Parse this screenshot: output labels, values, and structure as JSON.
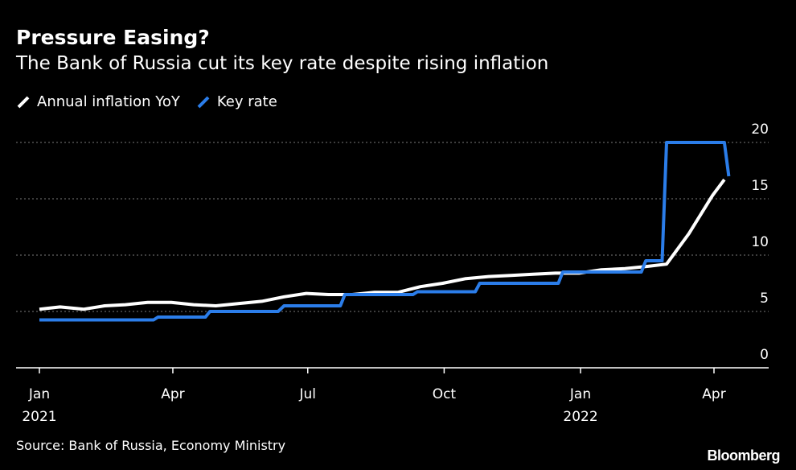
{
  "header": {
    "title": "Pressure Easing?",
    "subtitle": "The Bank of Russia cut its key rate despite rising inflation"
  },
  "footer": {
    "source": "Source: Bank of Russia, Economy Ministry",
    "brand": "Bloomberg"
  },
  "chart_data": {
    "type": "line",
    "title": "Pressure Easing?",
    "subtitle": "The Bank of Russia cut its key rate despite rising inflation",
    "xlabel": "",
    "ylabel": "",
    "x_range": [
      "2021-01-01",
      "2022-04-30"
    ],
    "ylim": [
      0,
      20
    ],
    "yticks": [
      0,
      5,
      10,
      15,
      20
    ],
    "y_axis_side": "right",
    "grid": "horizontal dotted",
    "legend_position": "top-left",
    "x_ticks": [
      {
        "date": "2021-01-01",
        "label": "Jan",
        "sublabel": "2021"
      },
      {
        "date": "2021-04-01",
        "label": "Apr",
        "sublabel": ""
      },
      {
        "date": "2021-07-01",
        "label": "Jul",
        "sublabel": ""
      },
      {
        "date": "2021-10-01",
        "label": "Oct",
        "sublabel": ""
      },
      {
        "date": "2022-01-01",
        "label": "Jan",
        "sublabel": "2022"
      },
      {
        "date": "2022-04-01",
        "label": "Apr",
        "sublabel": ""
      }
    ],
    "series": [
      {
        "name": "Annual inflation YoY",
        "color": "#ffffff",
        "points": [
          [
            "2021-01-01",
            5.2
          ],
          [
            "2021-01-15",
            5.4
          ],
          [
            "2021-01-31",
            5.2
          ],
          [
            "2021-02-14",
            5.5
          ],
          [
            "2021-02-28",
            5.6
          ],
          [
            "2021-03-15",
            5.8
          ],
          [
            "2021-03-31",
            5.8
          ],
          [
            "2021-04-15",
            5.6
          ],
          [
            "2021-04-30",
            5.5
          ],
          [
            "2021-05-15",
            5.7
          ],
          [
            "2021-05-31",
            5.9
          ],
          [
            "2021-06-15",
            6.3
          ],
          [
            "2021-06-30",
            6.6
          ],
          [
            "2021-07-15",
            6.5
          ],
          [
            "2021-07-31",
            6.5
          ],
          [
            "2021-08-15",
            6.7
          ],
          [
            "2021-08-31",
            6.7
          ],
          [
            "2021-09-15",
            7.2
          ],
          [
            "2021-09-30",
            7.5
          ],
          [
            "2021-10-15",
            7.9
          ],
          [
            "2021-10-31",
            8.1
          ],
          [
            "2021-11-15",
            8.2
          ],
          [
            "2021-11-30",
            8.3
          ],
          [
            "2021-12-15",
            8.4
          ],
          [
            "2021-12-31",
            8.4
          ],
          [
            "2022-01-15",
            8.7
          ],
          [
            "2022-01-31",
            8.8
          ],
          [
            "2022-02-15",
            9.0
          ],
          [
            "2022-02-28",
            9.2
          ],
          [
            "2022-03-15",
            11.9
          ],
          [
            "2022-03-31",
            15.3
          ],
          [
            "2022-04-08",
            16.7
          ]
        ]
      },
      {
        "name": "Key rate",
        "color": "#2b7de9",
        "points": [
          [
            "2021-01-01",
            4.25
          ],
          [
            "2021-03-19",
            4.25
          ],
          [
            "2021-03-22",
            4.5
          ],
          [
            "2021-04-23",
            4.5
          ],
          [
            "2021-04-26",
            5.0
          ],
          [
            "2021-06-11",
            5.0
          ],
          [
            "2021-06-15",
            5.5
          ],
          [
            "2021-07-23",
            5.5
          ],
          [
            "2021-07-26",
            6.5
          ],
          [
            "2021-09-10",
            6.5
          ],
          [
            "2021-09-13",
            6.75
          ],
          [
            "2021-10-22",
            6.75
          ],
          [
            "2021-10-25",
            7.5
          ],
          [
            "2021-12-17",
            7.5
          ],
          [
            "2021-12-20",
            8.5
          ],
          [
            "2022-02-11",
            8.5
          ],
          [
            "2022-02-14",
            9.5
          ],
          [
            "2022-02-25",
            9.5
          ],
          [
            "2022-02-28",
            20.0
          ],
          [
            "2022-04-08",
            20.0
          ],
          [
            "2022-04-11",
            17.0
          ]
        ]
      }
    ]
  }
}
